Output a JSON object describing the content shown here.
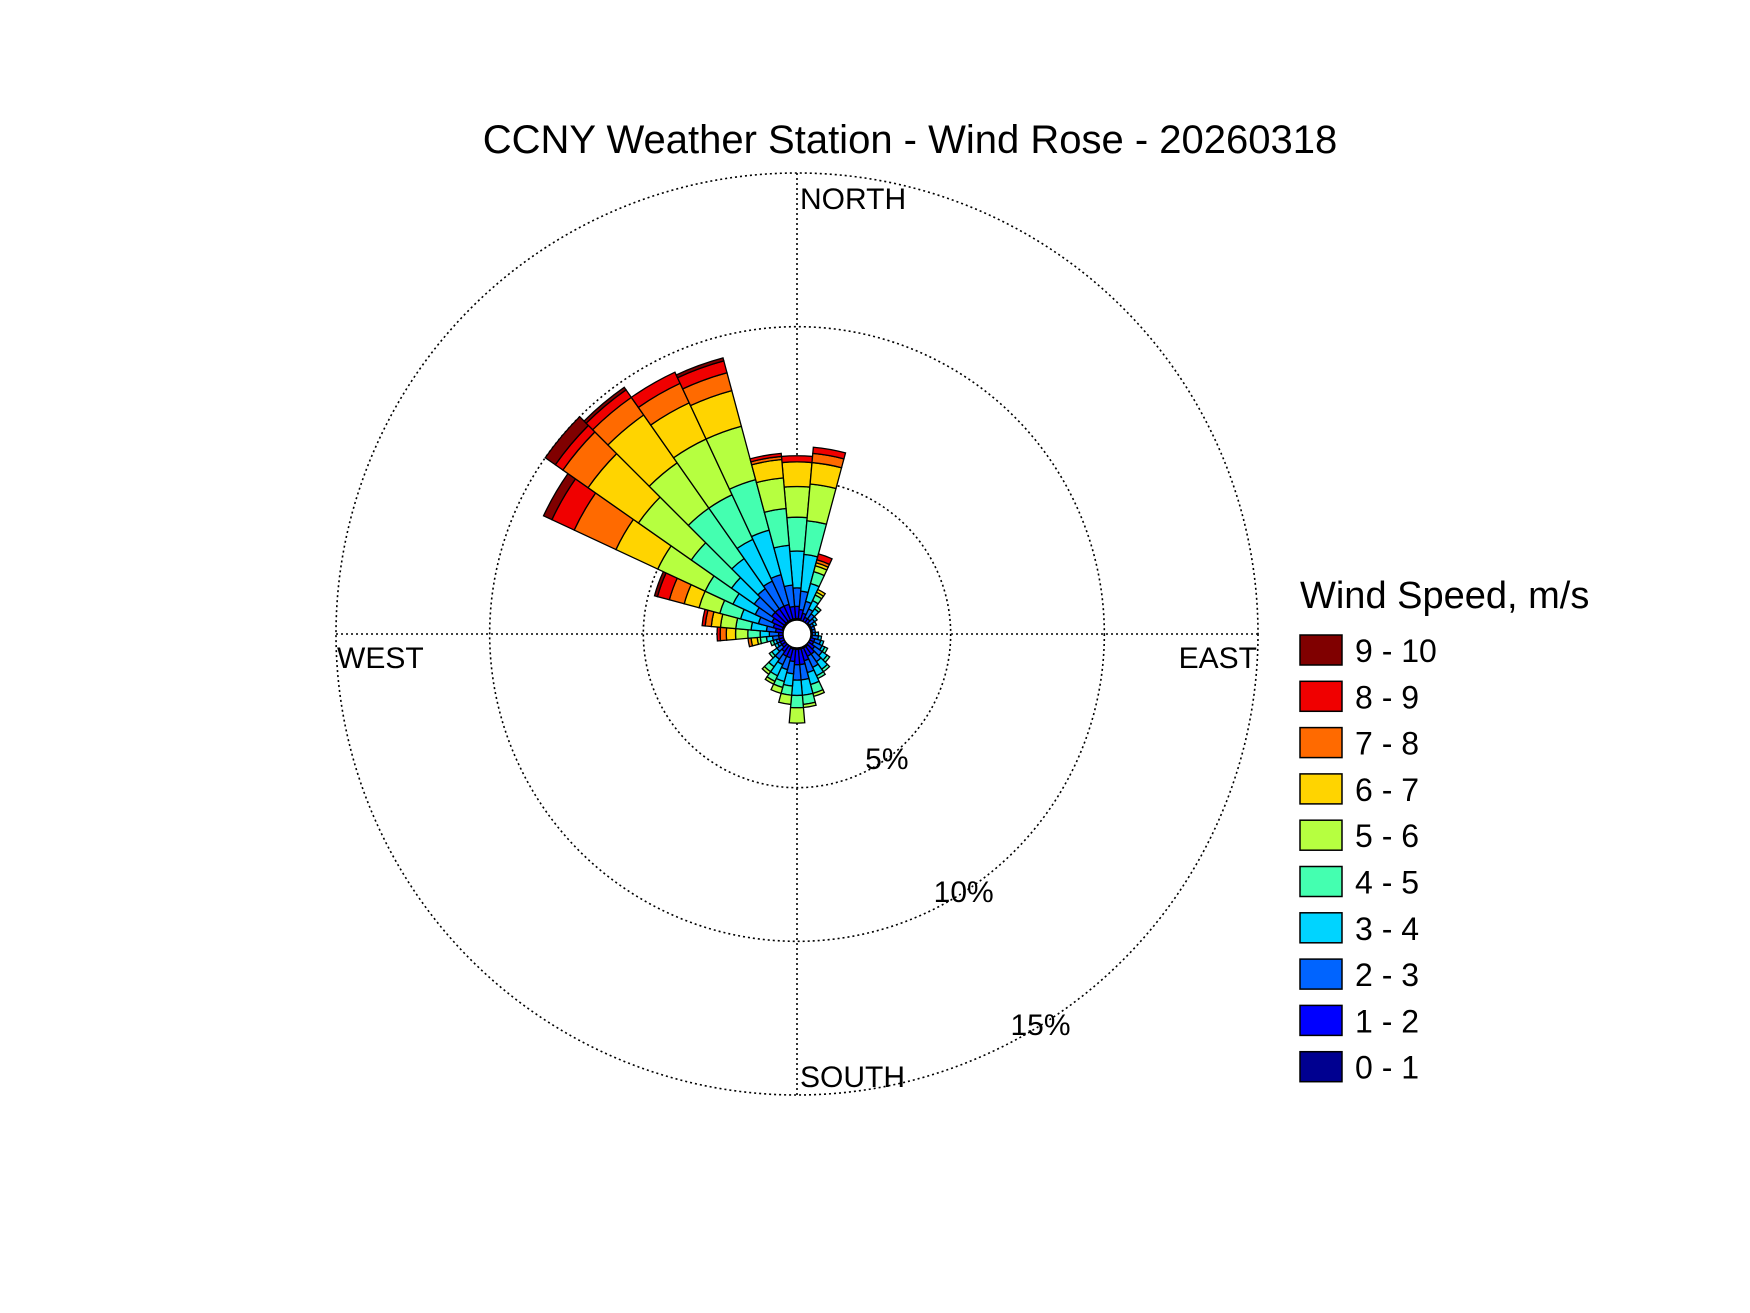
{
  "chart_data": {
    "type": "wind-rose",
    "title": "CCNY Weather Station - Wind Rose - 20260318",
    "direction_labels": {
      "north": "NORTH",
      "south": "SOUTH",
      "east": "EAST",
      "west": "WEST"
    },
    "radial_ticks": [
      {
        "value": 5,
        "label": "5%"
      },
      {
        "value": 10,
        "label": "10%"
      },
      {
        "value": 15,
        "label": "15%"
      }
    ],
    "radial_max": 15,
    "grid": true,
    "legend": {
      "title": "Wind Speed, m/s",
      "placement": "right",
      "bins": [
        {
          "label": "9 - 10",
          "color": "#800000"
        },
        {
          "label": "8 - 9",
          "color": "#f00000"
        },
        {
          "label": "7 - 8",
          "color": "#ff6a00"
        },
        {
          "label": "6 - 7",
          "color": "#ffd400"
        },
        {
          "label": "5 - 6",
          "color": "#b6ff40"
        },
        {
          "label": "4 - 5",
          "color": "#44ffb0"
        },
        {
          "label": "3 - 4",
          "color": "#00d4ff"
        },
        {
          "label": "2 - 3",
          "color": "#0064ff"
        },
        {
          "label": "1 - 2",
          "color": "#0000ff"
        },
        {
          "label": "0 - 1",
          "color": "#000090"
        }
      ]
    },
    "speed_bins_order": [
      "0 - 1",
      "1 - 2",
      "2 - 3",
      "3 - 4",
      "4 - 5",
      "5 - 6",
      "6 - 7",
      "7 - 8",
      "8 - 9",
      "9 - 10"
    ],
    "sector_width_deg": 10,
    "sectors": [
      {
        "dir": 0,
        "cum": [
          0.5,
          0.9,
          1.5,
          2.7,
          3.8,
          4.8,
          5.6,
          5.6,
          5.8,
          5.8
        ]
      },
      {
        "dir": 10,
        "cum": [
          0.5,
          0.8,
          1.4,
          2.6,
          3.7,
          4.9,
          5.6,
          5.9,
          6.1,
          6.1
        ]
      },
      {
        "dir": 20,
        "cum": [
          0.4,
          0.7,
          1.1,
          1.7,
          2.1,
          2.3,
          2.4,
          2.5,
          2.7,
          2.7
        ]
      },
      {
        "dir": 30,
        "cum": [
          0.4,
          0.6,
          0.9,
          1.2,
          1.4,
          1.5,
          1.6,
          1.6,
          1.6,
          1.6
        ]
      },
      {
        "dir": 40,
        "cum": [
          0.4,
          0.6,
          0.8,
          1.0,
          1.1,
          1.1,
          1.1,
          1.1,
          1.1,
          1.1
        ]
      },
      {
        "dir": 50,
        "cum": [
          0.4,
          0.5,
          0.7,
          0.8,
          0.8,
          0.8,
          0.8,
          0.8,
          0.8,
          0.8
        ]
      },
      {
        "dir": 60,
        "cum": [
          0.4,
          0.5,
          0.6,
          0.7,
          0.7,
          0.7,
          0.7,
          0.7,
          0.7,
          0.7
        ]
      },
      {
        "dir": 70,
        "cum": [
          0.4,
          0.5,
          0.6,
          0.6,
          0.6,
          0.6,
          0.6,
          0.6,
          0.6,
          0.6
        ]
      },
      {
        "dir": 80,
        "cum": [
          0.4,
          0.5,
          0.6,
          0.6,
          0.6,
          0.6,
          0.6,
          0.6,
          0.6,
          0.6
        ]
      },
      {
        "dir": 90,
        "cum": [
          0.4,
          0.5,
          0.6,
          0.7,
          0.7,
          0.7,
          0.7,
          0.7,
          0.7,
          0.7
        ]
      },
      {
        "dir": 100,
        "cum": [
          0.4,
          0.5,
          0.7,
          0.8,
          0.8,
          0.8,
          0.8,
          0.8,
          0.8,
          0.8
        ]
      },
      {
        "dir": 110,
        "cum": [
          0.4,
          0.6,
          0.8,
          0.9,
          0.9,
          0.9,
          0.9,
          0.9,
          0.9,
          0.9
        ]
      },
      {
        "dir": 120,
        "cum": [
          0.4,
          0.6,
          0.9,
          1.0,
          1.1,
          1.1,
          1.1,
          1.1,
          1.1,
          1.1
        ]
      },
      {
        "dir": 130,
        "cum": [
          0.4,
          0.7,
          1.0,
          1.2,
          1.3,
          1.3,
          1.3,
          1.3,
          1.3,
          1.3
        ]
      },
      {
        "dir": 140,
        "cum": [
          0.5,
          0.8,
          1.1,
          1.4,
          1.5,
          1.5,
          1.5,
          1.5,
          1.5,
          1.5
        ]
      },
      {
        "dir": 150,
        "cum": [
          0.5,
          0.8,
          1.2,
          1.5,
          1.6,
          1.6,
          1.6,
          1.6,
          1.6,
          1.6
        ]
      },
      {
        "dir": 160,
        "cum": [
          0.5,
          0.9,
          1.3,
          1.7,
          2.0,
          2.1,
          2.1,
          2.1,
          2.1,
          2.1
        ]
      },
      {
        "dir": 170,
        "cum": [
          0.5,
          1.0,
          1.5,
          2.0,
          2.3,
          2.4,
          2.4,
          2.4,
          2.4,
          2.4
        ]
      },
      {
        "dir": 180,
        "cum": [
          0.5,
          1.0,
          1.5,
          2.0,
          2.4,
          2.9,
          2.9,
          2.9,
          2.9,
          2.9
        ]
      },
      {
        "dir": 190,
        "cum": [
          0.5,
          0.9,
          1.3,
          1.7,
          2.0,
          2.3,
          2.3,
          2.3,
          2.3,
          2.3
        ]
      },
      {
        "dir": 200,
        "cum": [
          0.5,
          0.8,
          1.2,
          1.6,
          1.8,
          2.0,
          2.0,
          2.0,
          2.0,
          2.0
        ]
      },
      {
        "dir": 210,
        "cum": [
          0.4,
          0.8,
          1.1,
          1.5,
          1.7,
          1.8,
          1.8,
          1.8,
          1.8,
          1.8
        ]
      },
      {
        "dir": 220,
        "cum": [
          0.4,
          0.7,
          1.0,
          1.3,
          1.5,
          1.6,
          1.6,
          1.6,
          1.6,
          1.6
        ]
      },
      {
        "dir": 230,
        "cum": [
          0.4,
          0.6,
          0.8,
          1.0,
          1.1,
          1.1,
          1.1,
          1.1,
          1.1,
          1.1
        ]
      },
      {
        "dir": 240,
        "cum": [
          0.4,
          0.6,
          0.7,
          0.8,
          0.8,
          0.8,
          0.8,
          0.8,
          0.8,
          0.8
        ]
      },
      {
        "dir": 250,
        "cum": [
          0.4,
          0.6,
          0.7,
          0.8,
          0.9,
          0.9,
          0.9,
          0.9,
          0.9,
          0.9
        ]
      },
      {
        "dir": 260,
        "cum": [
          0.4,
          0.6,
          0.8,
          1.0,
          1.2,
          1.3,
          1.5,
          1.6,
          1.6,
          1.6
        ]
      },
      {
        "dir": 270,
        "cum": [
          0.4,
          0.6,
          0.9,
          1.2,
          1.6,
          2.0,
          2.3,
          2.5,
          2.6,
          2.6
        ]
      },
      {
        "dir": 280,
        "cum": [
          0.4,
          0.7,
          1.0,
          1.5,
          2.0,
          2.5,
          2.8,
          3.0,
          3.1,
          3.1
        ]
      },
      {
        "dir": 290,
        "cum": [
          0.5,
          0.8,
          1.3,
          1.9,
          2.6,
          3.3,
          3.8,
          4.3,
          4.7,
          4.8
        ]
      },
      {
        "dir": 300,
        "cum": [
          0.5,
          0.9,
          1.5,
          2.3,
          3.3,
          5.0,
          6.5,
          8.0,
          8.8,
          9.1
        ]
      },
      {
        "dir": 310,
        "cum": [
          0.5,
          1.0,
          1.7,
          2.6,
          4.2,
          6.3,
          8.3,
          9.3,
          9.6,
          10.0
        ]
      },
      {
        "dir": 320,
        "cum": [
          0.5,
          1.0,
          1.8,
          3.0,
          5.0,
          6.8,
          8.7,
          9.4,
          9.7,
          9.8
        ]
      },
      {
        "dir": 330,
        "cum": [
          0.5,
          1.0,
          1.9,
          3.4,
          5.0,
          7.0,
          8.3,
          9.0,
          9.4,
          9.4
        ]
      },
      {
        "dir": 340,
        "cum": [
          0.5,
          1.0,
          2.0,
          3.5,
          5.2,
          7.0,
          8.2,
          8.8,
          9.2,
          9.3
        ]
      },
      {
        "dir": 350,
        "cum": [
          0.5,
          0.9,
          1.6,
          2.9,
          4.1,
          5.1,
          5.7,
          5.8,
          5.9,
          5.9
        ]
      }
    ]
  }
}
